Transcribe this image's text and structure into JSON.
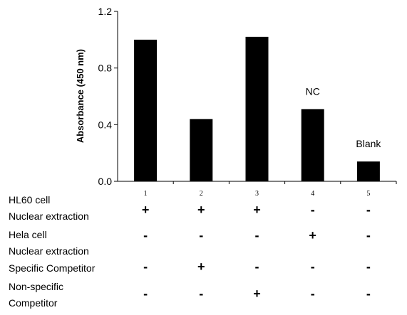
{
  "chart_data": {
    "type": "bar",
    "categories": [
      "1",
      "2",
      "3",
      "4",
      "5"
    ],
    "values": [
      1.0,
      0.44,
      1.02,
      0.51,
      0.14
    ],
    "title": "",
    "xlabel": "",
    "ylabel": "Absorbance (450 nm)",
    "ylim": [
      0,
      1.2
    ],
    "yticks": [
      "0.0",
      "0.4",
      "0.8",
      "1.2"
    ],
    "ytick_values": [
      0,
      0.4,
      0.8,
      1.2
    ],
    "annotations": [
      {
        "category": "4",
        "text": "NC"
      },
      {
        "category": "5",
        "text": "Blank"
      }
    ],
    "bar_color": "#000000",
    "grid": false,
    "conditions": [
      {
        "label_lines": [
          "HL60 cell",
          "Nuclear extraction"
        ],
        "signs": [
          "+",
          "+",
          "+",
          "-",
          "-"
        ]
      },
      {
        "label_lines": [
          "Hela cell",
          "Nuclear extraction"
        ],
        "signs": [
          "-",
          "-",
          "-",
          "+",
          "-"
        ]
      },
      {
        "label_lines": [
          "Specific Competitor"
        ],
        "signs": [
          "-",
          "+",
          "-",
          "-",
          "-"
        ]
      },
      {
        "label_lines": [
          "Non-specific",
          "Competitor"
        ],
        "signs": [
          "-",
          "-",
          "+",
          "-",
          "-"
        ]
      }
    ]
  }
}
